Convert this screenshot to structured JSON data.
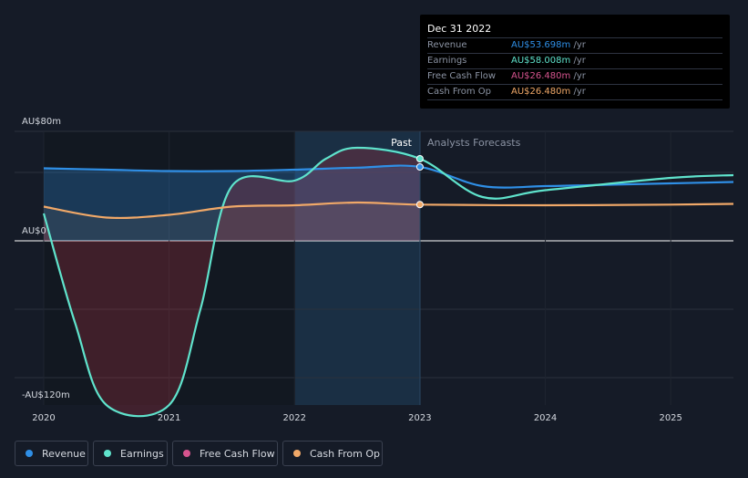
{
  "tooltip": {
    "date": "Dec 31 2022",
    "rows": [
      {
        "label": "Revenue",
        "value": "AU$53.698m",
        "unit": "/yr",
        "color": "#2f8fe6"
      },
      {
        "label": "Earnings",
        "value": "AU$58.008m",
        "unit": "/yr",
        "color": "#5fe3cc"
      },
      {
        "label": "Free Cash Flow",
        "value": "AU$26.480m",
        "unit": "/yr",
        "color": "#d6548e"
      },
      {
        "label": "Cash From Op",
        "value": "AU$26.480m",
        "unit": "/yr",
        "color": "#f0a868"
      }
    ]
  },
  "sections": {
    "past": "Past",
    "forecast": "Analysts Forecasts"
  },
  "legend": [
    {
      "label": "Revenue",
      "color": "#2f8fe6"
    },
    {
      "label": "Earnings",
      "color": "#5fe3cc"
    },
    {
      "label": "Free Cash Flow",
      "color": "#d6548e"
    },
    {
      "label": "Cash From Op",
      "color": "#f0a868"
    }
  ],
  "chart_data": {
    "type": "line",
    "y_tick_labels": [
      "AU$80m",
      "AU$0",
      "-AU$120m"
    ],
    "y_ticks": [
      80,
      0,
      -120
    ],
    "ylim": [
      -120,
      80
    ],
    "x_tick_labels": [
      "2020",
      "2021",
      "2022",
      "2023",
      "2024",
      "2025"
    ],
    "x_ticks": [
      2020,
      2021,
      2022,
      2023,
      2024,
      2025
    ],
    "xlim": [
      2020,
      2025.5
    ],
    "past_end": 2023,
    "series": [
      {
        "name": "Revenue",
        "color": "#2f8fe6",
        "x": [
          2020,
          2020.5,
          2021,
          2021.5,
          2022,
          2022.5,
          2023,
          2023.5,
          2024,
          2024.5,
          2025,
          2025.5
        ],
        "values": [
          53,
          52,
          51,
          51,
          52,
          53.5,
          54,
          40,
          40,
          41,
          42,
          43
        ]
      },
      {
        "name": "Earnings",
        "color": "#5fe3cc",
        "x": [
          2020,
          2020.25,
          2020.5,
          2021,
          2021.25,
          2021.5,
          2022,
          2022.25,
          2022.5,
          2023,
          2023.5,
          2024,
          2025,
          2025.5
        ],
        "values": [
          20,
          -60,
          -120,
          -120,
          -50,
          40,
          44,
          60,
          68,
          60,
          32,
          37,
          46,
          48
        ]
      },
      {
        "name": "Cash From Op",
        "color": "#f0a868",
        "x": [
          2020,
          2020.5,
          2021,
          2021.5,
          2022,
          2022.5,
          2023,
          2024,
          2025,
          2025.5
        ],
        "values": [
          25,
          17,
          19,
          25,
          26,
          28,
          26.5,
          26,
          26.5,
          27
        ]
      }
    ]
  }
}
